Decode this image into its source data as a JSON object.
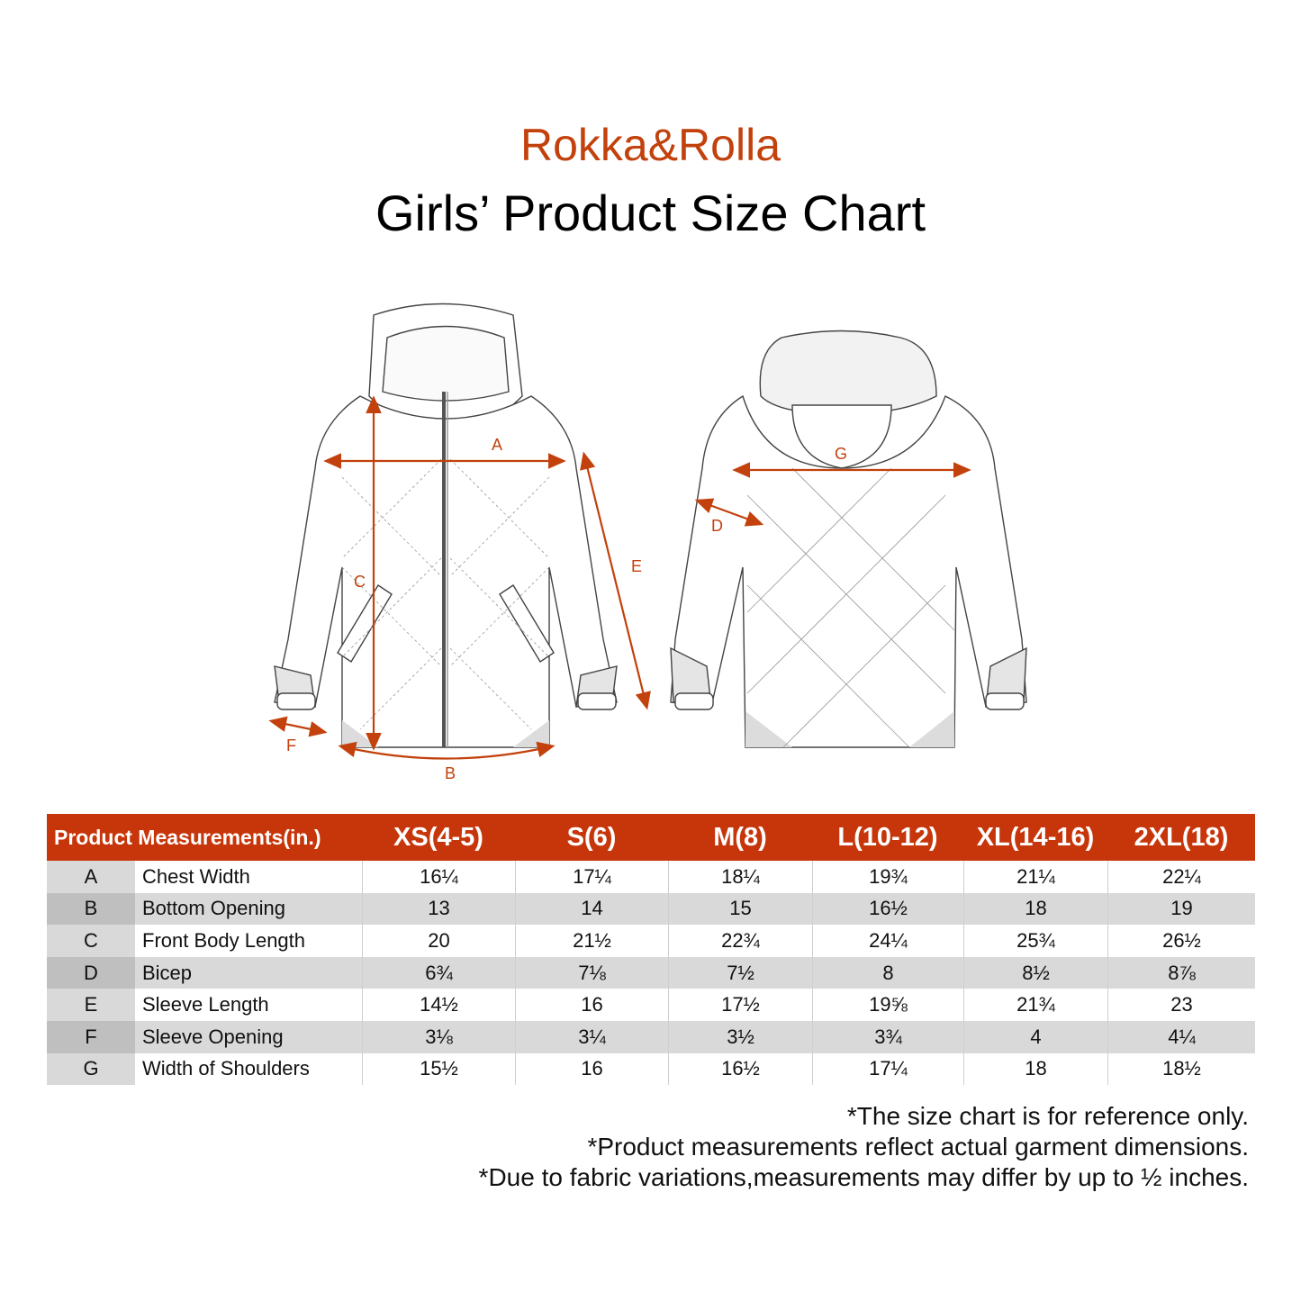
{
  "brand": "Rokka&Rolla",
  "title": "Girls’ Product Size Chart",
  "colors": {
    "accent": "#c7360a",
    "brand_text": "#c2410c",
    "row_shade": "#d9d9d9"
  },
  "illustration": {
    "front_labels": {
      "A": "A",
      "B": "B",
      "C": "C",
      "E": "E",
      "F": "F"
    },
    "back_labels": {
      "D": "D",
      "G": "G"
    }
  },
  "table": {
    "header_label": "Product Measurements(in.)",
    "sizes": [
      "XS(4-5)",
      "S(6)",
      "M(8)",
      "L(10-12)",
      "XL(14-16)",
      "2XL(18)"
    ],
    "rows": [
      {
        "code": "A",
        "name": "Chest Width",
        "values": [
          "16¼",
          "17¼",
          "18¼",
          "19¾",
          "21¼",
          "22¼"
        ]
      },
      {
        "code": "B",
        "name": "Bottom Opening",
        "values": [
          "13",
          "14",
          "15",
          "16½",
          "18",
          "19"
        ]
      },
      {
        "code": "C",
        "name": "Front Body Length",
        "values": [
          "20",
          "21½",
          "22¾",
          "24¼",
          "25¾",
          "26½"
        ]
      },
      {
        "code": "D",
        "name": "Bicep",
        "values": [
          "6¾",
          "7⅛",
          "7½",
          "8",
          "8½",
          "8⅞"
        ]
      },
      {
        "code": "E",
        "name": "Sleeve Length",
        "values": [
          "14½",
          "16",
          "17½",
          "19⅝",
          "21¾",
          "23"
        ]
      },
      {
        "code": "F",
        "name": "Sleeve Opening",
        "values": [
          "3⅛",
          "3¼",
          "3½",
          "3¾",
          "4",
          "4¼"
        ]
      },
      {
        "code": "G",
        "name": "Width of Shoulders",
        "values": [
          "15½",
          "16",
          "16½",
          "17¼",
          "18",
          "18½"
        ]
      }
    ]
  },
  "notes": [
    "*The size chart is for reference only.",
    "*Product measurements reflect actual garment dimensions.",
    "*Due to fabric variations,measurements may differ by up to ½ inches."
  ]
}
